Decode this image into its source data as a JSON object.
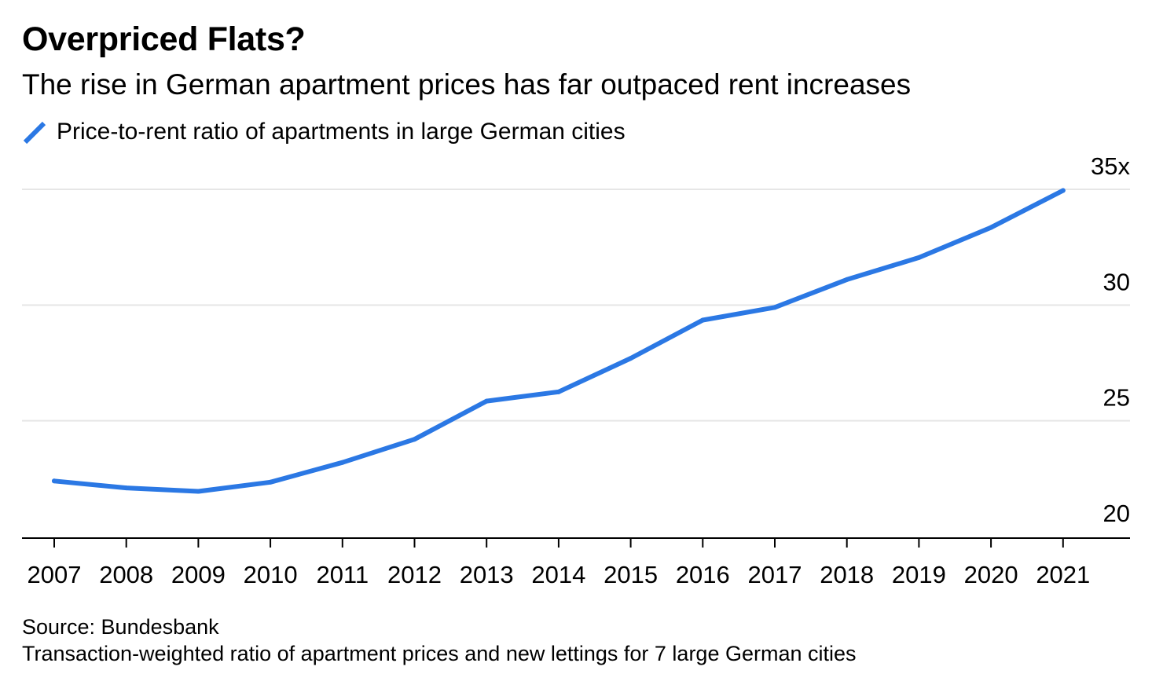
{
  "chart_data": {
    "type": "line",
    "title": "Overpriced Flats?",
    "subtitle": "The rise in German apartment prices has far outpaced rent increases",
    "x": [
      "2007",
      "2008",
      "2009",
      "2010",
      "2011",
      "2012",
      "2013",
      "2014",
      "2015",
      "2016",
      "2017",
      "2018",
      "2019",
      "2020",
      "2021"
    ],
    "series": [
      {
        "name": "Price-to-rent ratio of apartments in large German cities",
        "color": "#2b78e4",
        "values": [
          22.4,
          22.1,
          21.95,
          22.35,
          23.2,
          24.2,
          25.85,
          26.25,
          27.7,
          29.35,
          29.9,
          31.1,
          32.05,
          33.35,
          34.95
        ]
      }
    ],
    "ylim": [
      19.8,
      35.5
    ],
    "yticks": [
      20,
      25,
      30,
      35
    ],
    "ytick_labels": [
      "20",
      "25",
      "30",
      "35x"
    ],
    "xlabel": "",
    "ylabel": "",
    "grid": true,
    "legend_position": "top-left",
    "source": "Source: Bundesbank",
    "note": "Transaction-weighted ratio of apartment prices and new lettings for 7 large German cities"
  }
}
